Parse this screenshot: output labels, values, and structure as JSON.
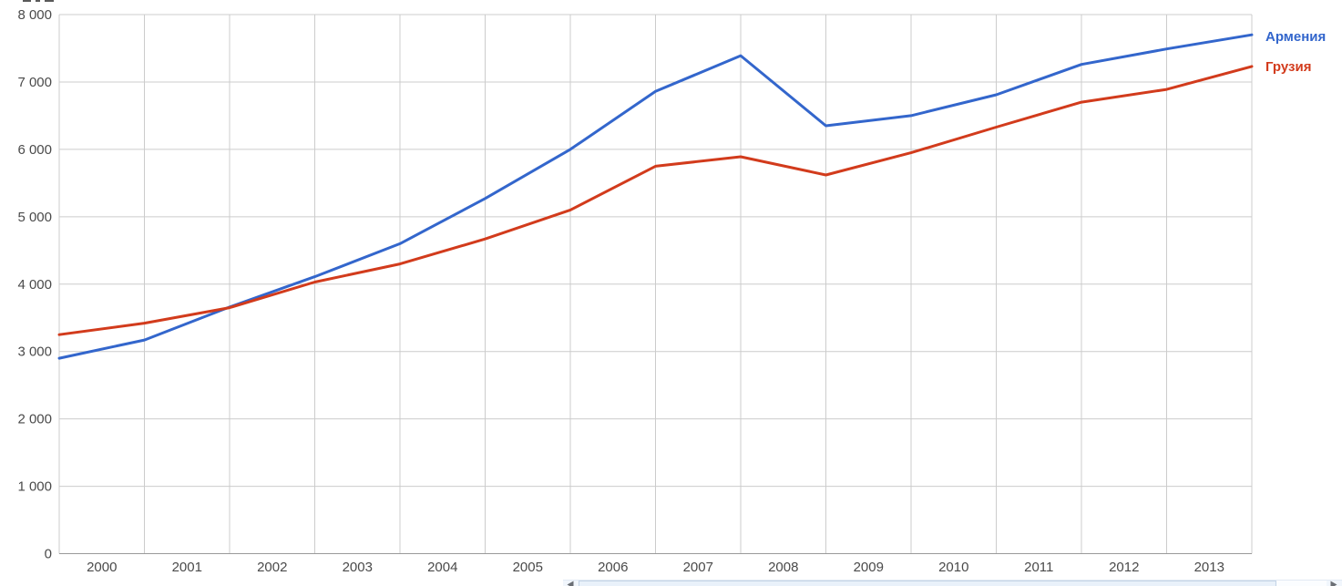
{
  "chart_data": {
    "type": "line",
    "title": "",
    "xlabel": "",
    "ylabel": "",
    "x_tick_labels": [
      "2000",
      "2001",
      "2002",
      "2003",
      "2004",
      "2005",
      "2006",
      "2007",
      "2008",
      "2009",
      "2010",
      "2011",
      "2012",
      "2013"
    ],
    "y_tick_labels": [
      "0",
      "1 000",
      "2 000",
      "3 000",
      "4 000",
      "5 000",
      "6 000",
      "7 000",
      "8 000"
    ],
    "ylim": [
      0,
      8000
    ],
    "grid": true,
    "legend_position": "right of line ends",
    "layout_note": "15 points per series plotted at vertical gridlines; year tick labels centered between gridlines",
    "series": [
      {
        "name": "Армения",
        "color": "#3366CC",
        "values": [
          2900,
          3170,
          3660,
          4110,
          4600,
          5270,
          6000,
          6860,
          7390,
          6350,
          6500,
          6810,
          7260,
          7490,
          7700
        ]
      },
      {
        "name": "Грузия",
        "color": "#D23B1C",
        "values": [
          3250,
          3420,
          3650,
          4030,
          4300,
          4670,
          5100,
          5750,
          5890,
          5620,
          5950,
          6330,
          6700,
          6890,
          7230
        ]
      }
    ]
  },
  "colors": {
    "gridline": "#CCCCCC",
    "baseline": "#999999",
    "tick_text": "#4A4A4A"
  },
  "icons": {
    "scrollbar_left_arrow": "◄",
    "scrollbar_right_arrow": "►"
  }
}
